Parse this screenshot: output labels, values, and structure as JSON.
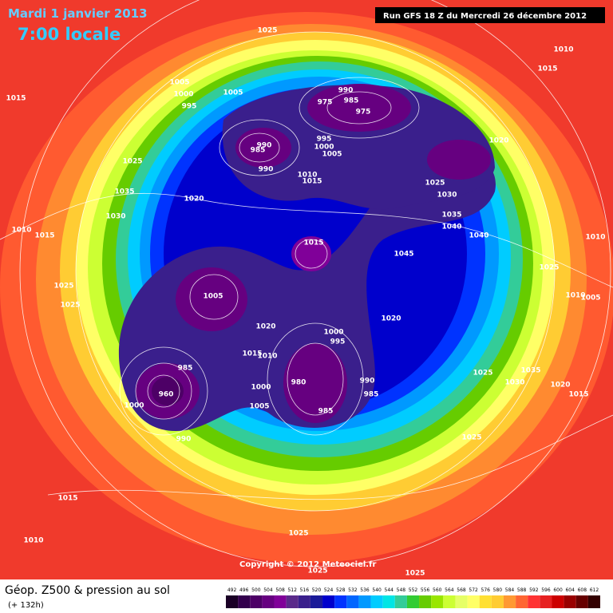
{
  "header": {
    "date": "Mardi 1 janvier 2013",
    "time": "7:00 locale",
    "run": "Run GFS 18 Z du Mercredi 26 décembre 2012"
  },
  "map": {
    "isobar_labels": [
      1025,
      1010,
      1015,
      1015,
      1005,
      1000,
      995,
      1005,
      990,
      975,
      985,
      975,
      985,
      990,
      990,
      995,
      1000,
      1005,
      1010,
      1015,
      1025,
      1035,
      1030,
      1020,
      1020,
      1025,
      1030,
      1035,
      1040,
      1040,
      1010,
      1015,
      1015,
      1045,
      1010,
      1025,
      1025,
      1025,
      1005,
      1010,
      1005,
      1020,
      1020,
      1000,
      995,
      1015,
      1010,
      985,
      980,
      990,
      985,
      1025,
      1035,
      1030,
      1020,
      1015,
      960,
      1000,
      1000,
      1005,
      985,
      990,
      1025,
      1015,
      1010,
      1025,
      1025,
      1025
    ],
    "copyright": "Copyright © 2012 Meteociel.fr"
  },
  "footer": {
    "title": "Géop. Z500 & pression au sol",
    "lead": "(+ 132h)",
    "scale": {
      "values": [
        492,
        496,
        500,
        504,
        508,
        512,
        516,
        520,
        524,
        528,
        532,
        536,
        540,
        544,
        548,
        552,
        556,
        560,
        564,
        568,
        572,
        576,
        580,
        584,
        588,
        592,
        596,
        600,
        604,
        608,
        612
      ],
      "colors": [
        "#1a0026",
        "#33004d",
        "#4d0066",
        "#660080",
        "#800099",
        "#5a2a8a",
        "#3a1f8c",
        "#1a1a99",
        "#0000cc",
        "#0033ff",
        "#0066ff",
        "#0099ff",
        "#00ccff",
        "#00e5e5",
        "#33cc99",
        "#33cc33",
        "#66cc00",
        "#99e600",
        "#ccff33",
        "#e6ff66",
        "#ffff66",
        "#ffe033",
        "#ffcc33",
        "#ff9933",
        "#ff6633",
        "#ff3333",
        "#e62020",
        "#cc0000",
        "#990000",
        "#660000",
        "#330000"
      ]
    }
  }
}
